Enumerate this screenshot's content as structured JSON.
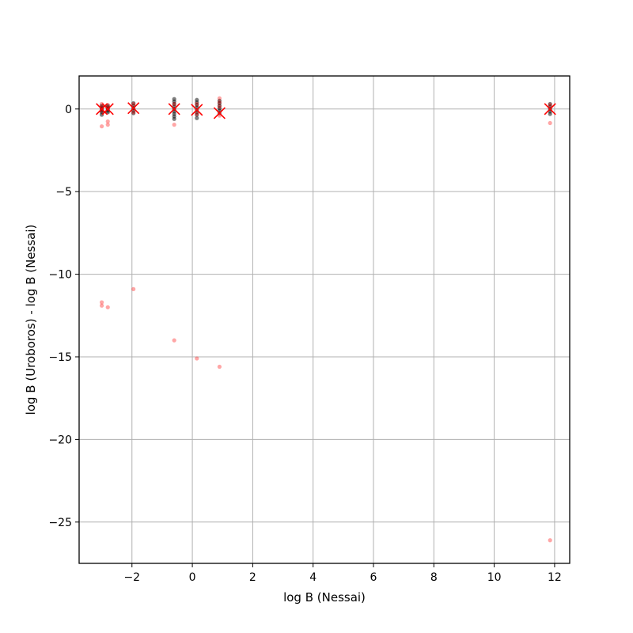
{
  "chart_data": {
    "type": "scatter",
    "xlabel": "log B (Nessai)",
    "ylabel": "log B (Uroboros) - log B (Nessai)",
    "xlim": [
      -3.75,
      12.5
    ],
    "ylim": [
      -27.5,
      2.0
    ],
    "xticks": [
      -2,
      0,
      2,
      4,
      6,
      8,
      10,
      12
    ],
    "yticks": [
      0,
      -5,
      -10,
      -15,
      -20,
      -25
    ],
    "xtick_labels": [
      "−2",
      "0",
      "2",
      "4",
      "6",
      "8",
      "10",
      "12"
    ],
    "ytick_labels": [
      "0",
      "−5",
      "−10",
      "−15",
      "−20",
      "−25"
    ],
    "grid": true,
    "colors": {
      "black_points": "#000000",
      "red_points": "#ff0000",
      "markers": "#ff0000",
      "grid": "#b0b0b0"
    },
    "series": [
      {
        "marker": "dot",
        "color": "#000000",
        "points": [
          [
            -3.0,
            0.2
          ],
          [
            -3.0,
            0.1
          ],
          [
            -3.0,
            0.0
          ],
          [
            -3.0,
            -0.1
          ],
          [
            -3.0,
            -0.2
          ],
          [
            -3.0,
            -0.35
          ],
          [
            -2.8,
            0.2
          ],
          [
            -2.8,
            0.1
          ],
          [
            -2.8,
            0.0
          ],
          [
            -2.8,
            -0.1
          ],
          [
            -2.8,
            -0.2
          ],
          [
            -1.95,
            0.35
          ],
          [
            -1.95,
            0.2
          ],
          [
            -1.95,
            0.05
          ],
          [
            -1.95,
            -0.1
          ],
          [
            -1.95,
            -0.25
          ],
          [
            -0.6,
            0.6
          ],
          [
            -0.6,
            0.45
          ],
          [
            -0.6,
            0.3
          ],
          [
            -0.6,
            0.15
          ],
          [
            -0.6,
            0.0
          ],
          [
            -0.6,
            -0.15
          ],
          [
            -0.6,
            -0.3
          ],
          [
            -0.6,
            -0.45
          ],
          [
            -0.6,
            -0.6
          ],
          [
            0.15,
            0.55
          ],
          [
            0.15,
            0.4
          ],
          [
            0.15,
            0.25
          ],
          [
            0.15,
            0.1
          ],
          [
            0.15,
            -0.05
          ],
          [
            0.15,
            -0.2
          ],
          [
            0.15,
            -0.35
          ],
          [
            0.15,
            -0.55
          ],
          [
            0.9,
            0.5
          ],
          [
            0.9,
            0.35
          ],
          [
            0.9,
            0.2
          ],
          [
            0.9,
            0.05
          ],
          [
            0.9,
            -0.1
          ],
          [
            0.9,
            -0.25
          ],
          [
            11.85,
            0.3
          ],
          [
            11.85,
            0.15
          ],
          [
            11.85,
            0.0
          ],
          [
            11.85,
            -0.15
          ],
          [
            11.85,
            -0.3
          ]
        ]
      },
      {
        "marker": "dot",
        "color": "#ff0000",
        "points": [
          [
            -3.0,
            0.3
          ],
          [
            -3.0,
            0.1
          ],
          [
            -3.0,
            -0.1
          ],
          [
            -3.0,
            -1.05
          ],
          [
            -2.8,
            0.25
          ],
          [
            -2.8,
            0.05
          ],
          [
            -2.8,
            -0.75
          ],
          [
            -2.8,
            -0.95
          ],
          [
            -1.95,
            0.3
          ],
          [
            -1.95,
            -0.2
          ],
          [
            -0.6,
            0.3
          ],
          [
            -0.6,
            -0.95
          ],
          [
            0.15,
            0.3
          ],
          [
            0.15,
            -0.3
          ],
          [
            0.9,
            0.65
          ],
          [
            0.9,
            0.4
          ],
          [
            0.9,
            0.15
          ],
          [
            0.9,
            -0.4
          ],
          [
            11.85,
            0.25
          ],
          [
            11.85,
            -0.85
          ],
          [
            -3.0,
            -11.7
          ],
          [
            -3.0,
            -11.9
          ],
          [
            -2.8,
            -12.0
          ],
          [
            -1.95,
            -10.9
          ],
          [
            -0.6,
            -14.0
          ],
          [
            0.15,
            -15.1
          ],
          [
            0.9,
            -15.6
          ],
          [
            11.85,
            -26.1
          ]
        ]
      },
      {
        "marker": "x",
        "color": "#ff0000",
        "points": [
          [
            -3.0,
            0.0
          ],
          [
            -2.8,
            0.0
          ],
          [
            -1.95,
            0.05
          ],
          [
            -0.6,
            0.0
          ],
          [
            0.15,
            -0.05
          ],
          [
            0.9,
            -0.25
          ],
          [
            11.85,
            0.0
          ]
        ]
      }
    ]
  }
}
